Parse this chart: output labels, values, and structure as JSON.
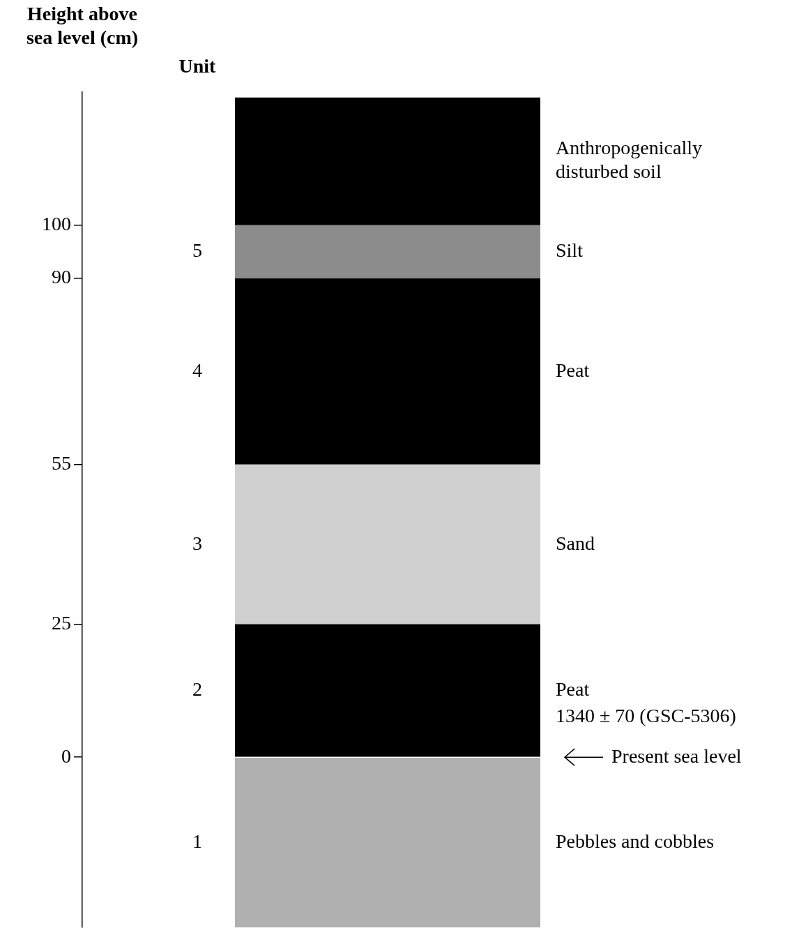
{
  "chart_data": {
    "type": "bar",
    "ylabel": "Height above sea level (cm)",
    "categories": [
      null
    ],
    "series": [
      {
        "name": "Pebbles and cobbles",
        "color": "#b0b0b0",
        "base": [
          -32
        ],
        "values": [
          32
        ]
      },
      {
        "name": "Peat",
        "color": "#000000",
        "base": [
          0
        ],
        "values": [
          25
        ]
      },
      {
        "name": "Sand",
        "color": "#d0d0d0",
        "base": [
          25
        ],
        "values": [
          30
        ]
      },
      {
        "name": "Peat",
        "color": "#000000",
        "base": [
          55
        ],
        "values": [
          35
        ]
      },
      {
        "name": "Silt",
        "color": "#8c8c8c",
        "base": [
          90
        ],
        "values": [
          10
        ]
      },
      {
        "name": "Anthropogenically disturbed soil",
        "color": "#000000",
        "base": [
          100
        ],
        "values": [
          24
        ]
      }
    ],
    "ylim": [
      -32,
      125
    ],
    "yticks": [
      0,
      25,
      55,
      90,
      100
    ],
    "annotations": [
      "Unit",
      "1",
      "2",
      "3",
      "4",
      "5",
      "1340 ± 70 (GSC-5306)"
    ],
    "ref_lines": [
      {
        "axis": "y",
        "value": 0,
        "label": "Present sea level",
        "color": "#000000"
      }
    ],
    "grid": false,
    "legend": false
  }
}
